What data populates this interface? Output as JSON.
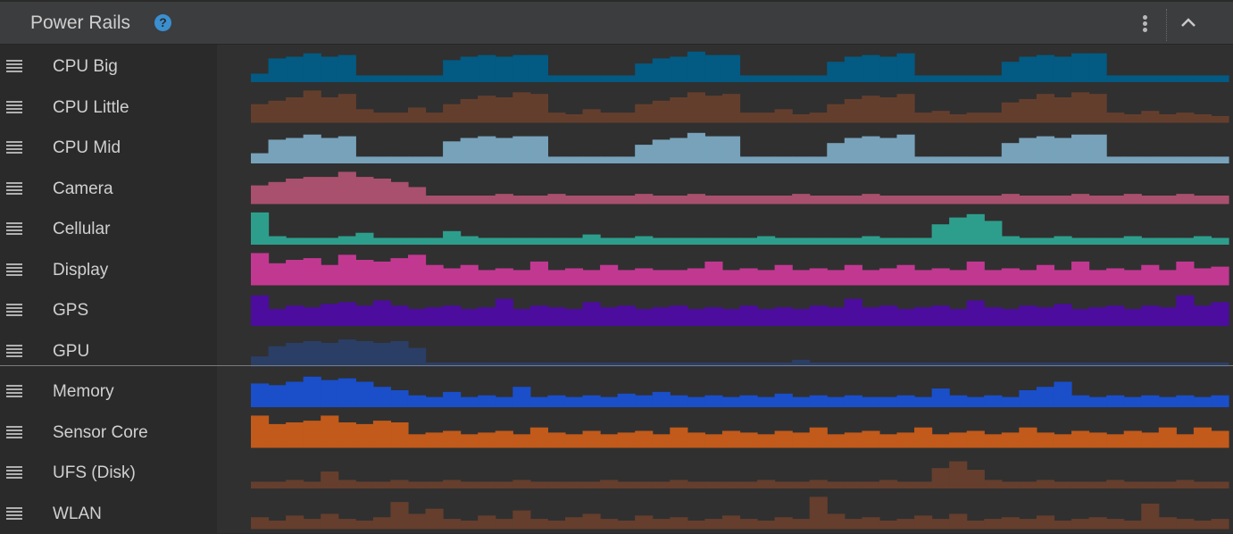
{
  "header": {
    "title": "Power Rails",
    "help_icon": "question-circle-icon",
    "menu_icon": "more-vertical-icon",
    "collapse_icon": "chevron-up-icon"
  },
  "chart_data": {
    "type": "bar",
    "value_scale": "relative power (0-1 of track height)",
    "series": [
      {
        "name": "CPU Big",
        "color": "#035a82",
        "values": [
          0.25,
          0.7,
          0.75,
          0.85,
          0.75,
          0.8,
          0.2,
          0.2,
          0.2,
          0.2,
          0.2,
          0.65,
          0.75,
          0.8,
          0.75,
          0.8,
          0.8,
          0.2,
          0.2,
          0.2,
          0.2,
          0.2,
          0.55,
          0.7,
          0.75,
          0.9,
          0.8,
          0.8,
          0.2,
          0.2,
          0.2,
          0.2,
          0.2,
          0.6,
          0.75,
          0.8,
          0.75,
          0.85,
          0.2,
          0.2,
          0.2,
          0.2,
          0.2,
          0.6,
          0.75,
          0.8,
          0.75,
          0.85,
          0.85,
          0.2,
          0.2,
          0.2,
          0.2,
          0.2,
          0.2,
          0.2
        ]
      },
      {
        "name": "CPU Little",
        "color": "#643e2d",
        "values": [
          0.55,
          0.65,
          0.75,
          0.95,
          0.75,
          0.85,
          0.4,
          0.3,
          0.3,
          0.45,
          0.3,
          0.55,
          0.7,
          0.8,
          0.75,
          0.9,
          0.85,
          0.3,
          0.25,
          0.4,
          0.3,
          0.3,
          0.55,
          0.65,
          0.75,
          0.9,
          0.8,
          0.85,
          0.3,
          0.3,
          0.4,
          0.25,
          0.3,
          0.55,
          0.7,
          0.8,
          0.75,
          0.85,
          0.3,
          0.35,
          0.25,
          0.3,
          0.3,
          0.6,
          0.7,
          0.85,
          0.75,
          0.9,
          0.85,
          0.3,
          0.25,
          0.35,
          0.25,
          0.3,
          0.25,
          0.2
        ]
      },
      {
        "name": "CPU Mid",
        "color": "#77a2ba",
        "values": [
          0.3,
          0.7,
          0.75,
          0.85,
          0.75,
          0.8,
          0.2,
          0.2,
          0.2,
          0.2,
          0.2,
          0.65,
          0.75,
          0.8,
          0.75,
          0.8,
          0.8,
          0.2,
          0.2,
          0.2,
          0.2,
          0.2,
          0.55,
          0.7,
          0.75,
          0.9,
          0.8,
          0.8,
          0.2,
          0.2,
          0.2,
          0.2,
          0.2,
          0.6,
          0.75,
          0.8,
          0.75,
          0.85,
          0.2,
          0.2,
          0.2,
          0.2,
          0.2,
          0.6,
          0.75,
          0.8,
          0.75,
          0.85,
          0.85,
          0.2,
          0.2,
          0.2,
          0.2,
          0.2,
          0.2,
          0.2
        ]
      },
      {
        "name": "Camera",
        "color": "#a8506d",
        "values": [
          0.55,
          0.65,
          0.75,
          0.8,
          0.8,
          0.95,
          0.8,
          0.75,
          0.65,
          0.5,
          0.25,
          0.25,
          0.25,
          0.25,
          0.3,
          0.25,
          0.25,
          0.3,
          0.25,
          0.25,
          0.25,
          0.25,
          0.3,
          0.25,
          0.25,
          0.3,
          0.25,
          0.25,
          0.25,
          0.25,
          0.25,
          0.3,
          0.25,
          0.25,
          0.25,
          0.3,
          0.25,
          0.25,
          0.25,
          0.25,
          0.25,
          0.25,
          0.25,
          0.3,
          0.25,
          0.25,
          0.25,
          0.3,
          0.25,
          0.25,
          0.3,
          0.25,
          0.25,
          0.3,
          0.25,
          0.25
        ]
      },
      {
        "name": "Cellular",
        "color": "#2e9e8c",
        "values": [
          0.95,
          0.25,
          0.2,
          0.2,
          0.2,
          0.25,
          0.35,
          0.2,
          0.2,
          0.2,
          0.2,
          0.4,
          0.25,
          0.2,
          0.2,
          0.2,
          0.2,
          0.2,
          0.2,
          0.3,
          0.2,
          0.2,
          0.25,
          0.2,
          0.2,
          0.2,
          0.2,
          0.2,
          0.2,
          0.25,
          0.2,
          0.2,
          0.2,
          0.2,
          0.2,
          0.25,
          0.2,
          0.2,
          0.2,
          0.6,
          0.8,
          0.9,
          0.7,
          0.25,
          0.2,
          0.2,
          0.25,
          0.2,
          0.2,
          0.2,
          0.25,
          0.2,
          0.2,
          0.2,
          0.25,
          0.2
        ]
      },
      {
        "name": "Display",
        "color": "#c13891",
        "values": [
          0.95,
          0.65,
          0.75,
          0.8,
          0.6,
          0.9,
          0.75,
          0.7,
          0.8,
          0.9,
          0.6,
          0.5,
          0.6,
          0.45,
          0.5,
          0.45,
          0.7,
          0.45,
          0.5,
          0.45,
          0.6,
          0.45,
          0.5,
          0.45,
          0.45,
          0.5,
          0.7,
          0.45,
          0.5,
          0.45,
          0.6,
          0.45,
          0.5,
          0.45,
          0.6,
          0.45,
          0.5,
          0.6,
          0.45,
          0.5,
          0.45,
          0.7,
          0.45,
          0.5,
          0.45,
          0.6,
          0.45,
          0.7,
          0.45,
          0.5,
          0.45,
          0.6,
          0.45,
          0.7,
          0.5,
          0.55
        ]
      },
      {
        "name": "GPS",
        "color": "#4c0d9e",
        "values": [
          0.9,
          0.5,
          0.6,
          0.55,
          0.65,
          0.7,
          0.6,
          0.75,
          0.6,
          0.5,
          0.55,
          0.6,
          0.5,
          0.55,
          0.8,
          0.5,
          0.6,
          0.55,
          0.5,
          0.7,
          0.55,
          0.6,
          0.5,
          0.55,
          0.6,
          0.5,
          0.55,
          0.5,
          0.6,
          0.5,
          0.55,
          0.5,
          0.6,
          0.55,
          0.8,
          0.55,
          0.6,
          0.5,
          0.55,
          0.6,
          0.5,
          0.75,
          0.55,
          0.5,
          0.6,
          0.55,
          0.65,
          0.5,
          0.55,
          0.6,
          0.5,
          0.6,
          0.55,
          0.9,
          0.6,
          0.7
        ]
      },
      {
        "name": "GPU",
        "color": "#2a3e66",
        "values": [
          0.3,
          0.6,
          0.7,
          0.75,
          0.7,
          0.8,
          0.75,
          0.7,
          0.75,
          0.55,
          0.12,
          0.12,
          0.12,
          0.12,
          0.12,
          0.12,
          0.12,
          0.12,
          0.12,
          0.12,
          0.12,
          0.12,
          0.12,
          0.12,
          0.12,
          0.12,
          0.12,
          0.12,
          0.12,
          0.12,
          0.12,
          0.2,
          0.12,
          0.12,
          0.12,
          0.12,
          0.12,
          0.12,
          0.12,
          0.12,
          0.12,
          0.12,
          0.12,
          0.12,
          0.12,
          0.12,
          0.12,
          0.12,
          0.12,
          0.12,
          0.12,
          0.12,
          0.12,
          0.12,
          0.12,
          0.12
        ]
      },
      {
        "name": "Memory",
        "color": "#1a4fc9",
        "values": [
          0.7,
          0.65,
          0.75,
          0.9,
          0.8,
          0.85,
          0.75,
          0.6,
          0.5,
          0.35,
          0.3,
          0.45,
          0.3,
          0.35,
          0.3,
          0.6,
          0.3,
          0.35,
          0.3,
          0.35,
          0.3,
          0.4,
          0.35,
          0.45,
          0.35,
          0.3,
          0.35,
          0.3,
          0.35,
          0.3,
          0.4,
          0.3,
          0.35,
          0.3,
          0.35,
          0.3,
          0.3,
          0.35,
          0.3,
          0.55,
          0.35,
          0.3,
          0.35,
          0.3,
          0.5,
          0.6,
          0.75,
          0.35,
          0.3,
          0.35,
          0.3,
          0.35,
          0.3,
          0.35,
          0.3,
          0.35
        ]
      },
      {
        "name": "Sensor Core",
        "color": "#c15a1b",
        "values": [
          0.95,
          0.7,
          0.75,
          0.8,
          0.95,
          0.75,
          0.7,
          0.8,
          0.75,
          0.4,
          0.45,
          0.5,
          0.4,
          0.45,
          0.5,
          0.4,
          0.6,
          0.45,
          0.4,
          0.5,
          0.4,
          0.45,
          0.5,
          0.4,
          0.6,
          0.45,
          0.4,
          0.5,
          0.45,
          0.4,
          0.5,
          0.45,
          0.6,
          0.4,
          0.45,
          0.5,
          0.4,
          0.45,
          0.6,
          0.4,
          0.45,
          0.5,
          0.4,
          0.45,
          0.6,
          0.45,
          0.4,
          0.5,
          0.45,
          0.4,
          0.5,
          0.45,
          0.6,
          0.4,
          0.6,
          0.5
        ]
      },
      {
        "name": "UFS (Disk)",
        "color": "#653e2d",
        "values": [
          0.2,
          0.2,
          0.25,
          0.2,
          0.5,
          0.25,
          0.2,
          0.2,
          0.25,
          0.2,
          0.2,
          0.25,
          0.2,
          0.2,
          0.2,
          0.25,
          0.2,
          0.2,
          0.2,
          0.2,
          0.25,
          0.2,
          0.2,
          0.2,
          0.25,
          0.2,
          0.2,
          0.2,
          0.2,
          0.25,
          0.2,
          0.2,
          0.25,
          0.2,
          0.2,
          0.2,
          0.25,
          0.2,
          0.2,
          0.6,
          0.8,
          0.55,
          0.25,
          0.2,
          0.2,
          0.25,
          0.2,
          0.2,
          0.2,
          0.25,
          0.2,
          0.2,
          0.2,
          0.25,
          0.2,
          0.2
        ]
      },
      {
        "name": "WLAN",
        "color": "#653e2d",
        "values": [
          0.35,
          0.25,
          0.4,
          0.3,
          0.45,
          0.3,
          0.25,
          0.35,
          0.8,
          0.45,
          0.6,
          0.3,
          0.25,
          0.4,
          0.3,
          0.55,
          0.3,
          0.25,
          0.35,
          0.45,
          0.3,
          0.25,
          0.4,
          0.3,
          0.35,
          0.25,
          0.3,
          0.4,
          0.3,
          0.25,
          0.35,
          0.3,
          0.95,
          0.45,
          0.3,
          0.35,
          0.25,
          0.3,
          0.4,
          0.3,
          0.45,
          0.25,
          0.3,
          0.35,
          0.3,
          0.4,
          0.25,
          0.3,
          0.35,
          0.3,
          0.25,
          0.75,
          0.35,
          0.3,
          0.25,
          0.3
        ]
      }
    ]
  }
}
